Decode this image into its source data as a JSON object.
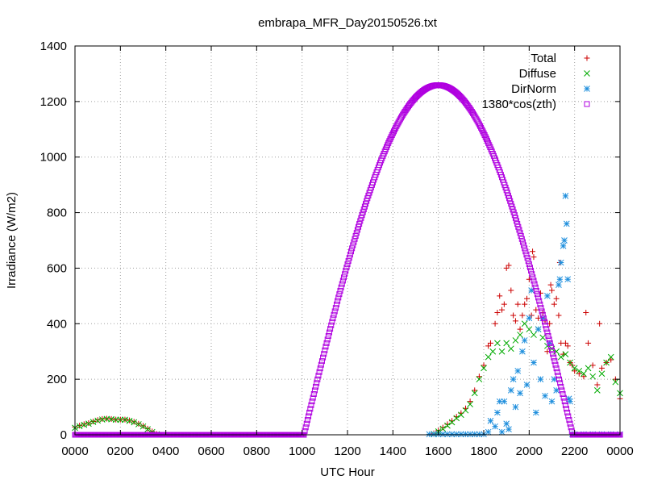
{
  "chart_data": {
    "type": "scatter",
    "title": "embrapa_MFR_Day20150526.txt",
    "xlabel": "UTC Hour",
    "ylabel": "Irradiance (W/m2)",
    "xlim": [
      0,
      24
    ],
    "ylim": [
      0,
      1400
    ],
    "x_ticks": [
      {
        "value": 0,
        "label": "0000"
      },
      {
        "value": 2,
        "label": "0200"
      },
      {
        "value": 4,
        "label": "0400"
      },
      {
        "value": 6,
        "label": "0600"
      },
      {
        "value": 8,
        "label": "0800"
      },
      {
        "value": 10,
        "label": "1000"
      },
      {
        "value": 12,
        "label": "1200"
      },
      {
        "value": 14,
        "label": "1400"
      },
      {
        "value": 16,
        "label": "1600"
      },
      {
        "value": 18,
        "label": "1800"
      },
      {
        "value": 20,
        "label": "2000"
      },
      {
        "value": 22,
        "label": "2200"
      },
      {
        "value": 24,
        "label": "0000"
      }
    ],
    "y_ticks": [
      0,
      200,
      400,
      600,
      800,
      1000,
      1200,
      1400
    ],
    "grid": true,
    "legend_position": "top-right",
    "series": [
      {
        "name": "Total",
        "marker": "plus",
        "color": "#cc0000",
        "points": [
          [
            0.0,
            28
          ],
          [
            0.2,
            33
          ],
          [
            0.4,
            38
          ],
          [
            0.6,
            42
          ],
          [
            0.8,
            48
          ],
          [
            1.0,
            53
          ],
          [
            1.2,
            57
          ],
          [
            1.4,
            58
          ],
          [
            1.6,
            57
          ],
          [
            1.8,
            55
          ],
          [
            2.0,
            55
          ],
          [
            2.2,
            55
          ],
          [
            2.4,
            52
          ],
          [
            2.6,
            47
          ],
          [
            2.8,
            40
          ],
          [
            3.0,
            32
          ],
          [
            3.2,
            22
          ],
          [
            3.4,
            12
          ],
          [
            3.6,
            3
          ],
          [
            15.8,
            5
          ],
          [
            16.0,
            15
          ],
          [
            16.2,
            26
          ],
          [
            16.4,
            38
          ],
          [
            16.6,
            50
          ],
          [
            16.8,
            65
          ],
          [
            17.0,
            78
          ],
          [
            17.2,
            95
          ],
          [
            17.4,
            120
          ],
          [
            17.6,
            160
          ],
          [
            17.8,
            210
          ],
          [
            18.0,
            250
          ],
          [
            18.2,
            320
          ],
          [
            18.3,
            330
          ],
          [
            18.5,
            400
          ],
          [
            18.6,
            440
          ],
          [
            18.7,
            500
          ],
          [
            18.8,
            450
          ],
          [
            18.9,
            470
          ],
          [
            19.0,
            600
          ],
          [
            19.1,
            610
          ],
          [
            19.2,
            520
          ],
          [
            19.3,
            430
          ],
          [
            19.4,
            410
          ],
          [
            19.5,
            470
          ],
          [
            19.6,
            380
          ],
          [
            19.7,
            430
          ],
          [
            19.8,
            470
          ],
          [
            19.9,
            490
          ],
          [
            20.0,
            560
          ],
          [
            20.1,
            430
          ],
          [
            20.15,
            660
          ],
          [
            20.2,
            640
          ],
          [
            20.3,
            450
          ],
          [
            20.4,
            420
          ],
          [
            20.5,
            510
          ],
          [
            20.6,
            440
          ],
          [
            20.7,
            410
          ],
          [
            20.8,
            300
          ],
          [
            20.9,
            400
          ],
          [
            20.95,
            540
          ],
          [
            21.0,
            520
          ],
          [
            21.1,
            470
          ],
          [
            21.2,
            490
          ],
          [
            21.3,
            430
          ],
          [
            21.35,
            620
          ],
          [
            21.4,
            330
          ],
          [
            21.5,
            290
          ],
          [
            21.6,
            330
          ],
          [
            21.7,
            320
          ],
          [
            21.8,
            260
          ],
          [
            21.9,
            250
          ],
          [
            22.0,
            230
          ],
          [
            22.2,
            220
          ],
          [
            22.4,
            210
          ],
          [
            22.5,
            440
          ],
          [
            22.6,
            330
          ],
          [
            22.8,
            250
          ],
          [
            23.0,
            180
          ],
          [
            23.1,
            400
          ],
          [
            23.2,
            240
          ],
          [
            23.4,
            260
          ],
          [
            23.6,
            270
          ],
          [
            23.8,
            200
          ],
          [
            24.0,
            130
          ]
        ]
      },
      {
        "name": "Diffuse",
        "marker": "cross",
        "color": "#00aa00",
        "points": [
          [
            0.0,
            25
          ],
          [
            0.2,
            31
          ],
          [
            0.4,
            36
          ],
          [
            0.6,
            40
          ],
          [
            0.8,
            46
          ],
          [
            1.0,
            51
          ],
          [
            1.2,
            55
          ],
          [
            1.4,
            57
          ],
          [
            1.6,
            56
          ],
          [
            1.8,
            54
          ],
          [
            2.0,
            54
          ],
          [
            2.2,
            54
          ],
          [
            2.4,
            50
          ],
          [
            2.6,
            45
          ],
          [
            2.8,
            38
          ],
          [
            3.0,
            30
          ],
          [
            3.2,
            20
          ],
          [
            3.4,
            10
          ],
          [
            3.6,
            2
          ],
          [
            15.8,
            3
          ],
          [
            16.0,
            12
          ],
          [
            16.2,
            22
          ],
          [
            16.4,
            33
          ],
          [
            16.6,
            45
          ],
          [
            16.8,
            60
          ],
          [
            17.0,
            72
          ],
          [
            17.2,
            88
          ],
          [
            17.4,
            110
          ],
          [
            17.6,
            150
          ],
          [
            17.8,
            200
          ],
          [
            18.0,
            240
          ],
          [
            18.2,
            280
          ],
          [
            18.4,
            300
          ],
          [
            18.6,
            330
          ],
          [
            18.8,
            300
          ],
          [
            19.0,
            330
          ],
          [
            19.2,
            310
          ],
          [
            19.4,
            340
          ],
          [
            19.6,
            360
          ],
          [
            19.8,
            400
          ],
          [
            20.0,
            380
          ],
          [
            20.2,
            360
          ],
          [
            20.4,
            380
          ],
          [
            20.6,
            350
          ],
          [
            20.8,
            320
          ],
          [
            21.0,
            310
          ],
          [
            21.2,
            300
          ],
          [
            21.4,
            280
          ],
          [
            21.6,
            290
          ],
          [
            21.8,
            260
          ],
          [
            22.0,
            240
          ],
          [
            22.2,
            230
          ],
          [
            22.4,
            220
          ],
          [
            22.6,
            240
          ],
          [
            22.8,
            210
          ],
          [
            23.0,
            160
          ],
          [
            23.2,
            220
          ],
          [
            23.4,
            260
          ],
          [
            23.6,
            280
          ],
          [
            23.8,
            190
          ],
          [
            24.0,
            150
          ]
        ]
      },
      {
        "name": "DirNorm",
        "marker": "star",
        "color": "#1f8fdd",
        "points": [
          [
            15.6,
            2
          ],
          [
            15.8,
            2
          ],
          [
            16.0,
            2
          ],
          [
            16.2,
            2
          ],
          [
            16.4,
            2
          ],
          [
            16.6,
            2
          ],
          [
            16.8,
            2
          ],
          [
            17.0,
            2
          ],
          [
            17.2,
            2
          ],
          [
            17.4,
            2
          ],
          [
            17.6,
            2
          ],
          [
            17.8,
            2
          ],
          [
            18.0,
            2
          ],
          [
            18.2,
            10
          ],
          [
            18.3,
            50
          ],
          [
            18.5,
            30
          ],
          [
            18.6,
            80
          ],
          [
            18.7,
            120
          ],
          [
            18.8,
            10
          ],
          [
            18.9,
            120
          ],
          [
            19.0,
            40
          ],
          [
            19.1,
            20
          ],
          [
            19.2,
            160
          ],
          [
            19.3,
            200
          ],
          [
            19.4,
            100
          ],
          [
            19.5,
            230
          ],
          [
            19.6,
            150
          ],
          [
            19.7,
            300
          ],
          [
            19.8,
            340
          ],
          [
            19.9,
            180
          ],
          [
            20.0,
            420
          ],
          [
            20.1,
            520
          ],
          [
            20.2,
            260
          ],
          [
            20.3,
            80
          ],
          [
            20.4,
            380
          ],
          [
            20.5,
            200
          ],
          [
            20.6,
            420
          ],
          [
            20.7,
            140
          ],
          [
            20.8,
            500
          ],
          [
            20.9,
            330
          ],
          [
            21.0,
            120
          ],
          [
            21.1,
            200
          ],
          [
            21.2,
            160
          ],
          [
            21.3,
            540
          ],
          [
            21.35,
            560
          ],
          [
            21.4,
            620
          ],
          [
            21.5,
            680
          ],
          [
            21.55,
            700
          ],
          [
            21.6,
            860
          ],
          [
            21.65,
            760
          ],
          [
            21.7,
            560
          ],
          [
            21.75,
            130
          ],
          [
            21.8,
            120
          ],
          [
            21.9,
            2
          ],
          [
            22.0,
            2
          ],
          [
            22.4,
            2
          ],
          [
            22.8,
            2
          ],
          [
            23.2,
            2
          ],
          [
            23.6,
            2
          ],
          [
            24.0,
            2
          ]
        ]
      },
      {
        "name": "1380*cos(zth)",
        "marker": "square",
        "color": "#b000e0",
        "sunrise": 10.08,
        "sunset": 21.92,
        "peak_time": 16.0,
        "peak_value": 1259,
        "step": 0.04,
        "night_value": 0
      }
    ]
  }
}
